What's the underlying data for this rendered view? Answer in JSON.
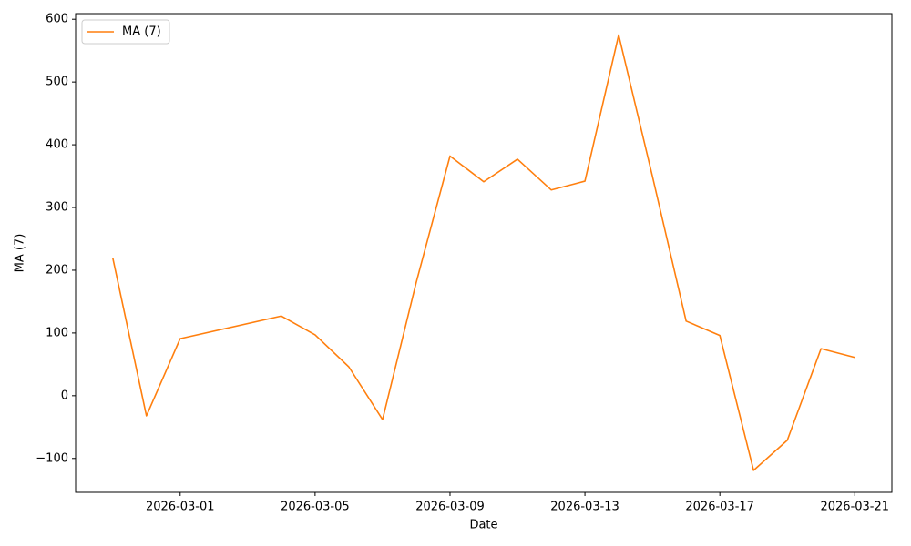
{
  "chart_data": {
    "type": "line",
    "xlabel": "Date",
    "ylabel": "MA (7)",
    "x": [
      "2026-02-27",
      "2026-02-28",
      "2026-03-01",
      "2026-03-04",
      "2026-03-05",
      "2026-03-06",
      "2026-03-07",
      "2026-03-08",
      "2026-03-09",
      "2026-03-10",
      "2026-03-11",
      "2026-03-12",
      "2026-03-13",
      "2026-03-14",
      "2026-03-15",
      "2026-03-16",
      "2026-03-17",
      "2026-03-18",
      "2026-03-19",
      "2026-03-20",
      "2026-03-21"
    ],
    "series": [
      {
        "name": "MA (7)",
        "color": "#ff7f0e",
        "values": [
          220,
          -32,
          91,
          127,
          97,
          46,
          -38,
          181,
          382,
          341,
          377,
          328,
          342,
          575,
          350,
          119,
          96,
          -119,
          -71,
          75,
          61
        ]
      }
    ],
    "xlim": [
      "2026-02-25T21:36",
      "2026-03-22T02:24"
    ],
    "xticks": [
      "2026-03-01",
      "2026-03-05",
      "2026-03-09",
      "2026-03-13",
      "2026-03-17",
      "2026-03-21"
    ],
    "ylim": [
      -154,
      609
    ],
    "yticks": [
      {
        "value": -100,
        "label": "−100"
      },
      0,
      100,
      200,
      300,
      400,
      500,
      600
    ],
    "legend": "upper left",
    "grid": false
  }
}
